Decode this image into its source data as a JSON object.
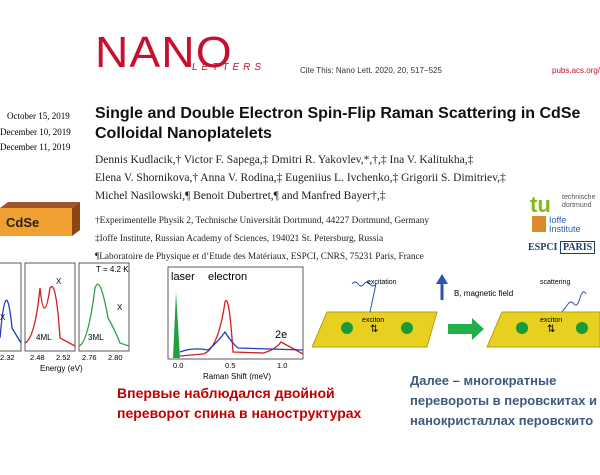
{
  "header": {
    "logo_main": "NANO",
    "logo_sub": "LETTERS",
    "cite": "Cite This: Nano Lett. 2020, 20, 517−525",
    "url": "pubs.acs.org/"
  },
  "dates": [
    "October 15, 2019",
    "December 10, 2019",
    "December 11, 2019"
  ],
  "paper": {
    "title_lines": [
      "Single and Double Electron Spin-Flip Raman Scattering in CdSe",
      "Colloidal Nanoplatelets"
    ],
    "authors": [
      "Dennis Kudlacik,† Victor F. Sapega,‡ Dmitri R. Yakovlev,*,†,‡ Ina V. Kalitukha,‡",
      "Elena V. Shornikova,† Anna V. Rodina,‡ Eugeniius L. Ivchenko,‡ Grigorii S. Dimitriev,‡",
      "Michel Nasilowski,¶ Benoit Dubertret,¶ and Manfred Bayer†,‡"
    ],
    "affiliations": [
      "†Experimentelle Physik 2, Technische Universität Dortmund, 44227 Dortmund, Germany",
      "‡Ioffe Institute, Russian Academy of Sciences, 194021 St. Petersburg, Russia",
      "¶Laboratoire de Physique et d’Etude des Matériaux, ESPCI, CNRS, 75231 Paris, France"
    ]
  },
  "logos": {
    "tu": [
      "technische",
      "dortmund"
    ],
    "ioffe": [
      "Ioffe",
      "Institute"
    ],
    "espci": [
      "ESPCI",
      "PARIS"
    ]
  },
  "sample_label": "CdSe",
  "spectra": {
    "temperature": "T = 4.2 K",
    "peak_labels": [
      "X",
      "X",
      "X"
    ],
    "layers": [
      "4ML",
      "3ML"
    ],
    "ticks": [
      "2.32",
      "2.48",
      "2.52",
      "2.76",
      "2.80"
    ],
    "xlabel": "Energy (eV)"
  },
  "raman": {
    "labels": [
      "laser",
      "electron",
      "2e"
    ],
    "ticks": [
      "0.0",
      "0.5",
      "1.0"
    ],
    "xlabel": "Raman Shift (meV)"
  },
  "red_note": [
    "Впервые наблюдался двойной",
    "переворот спина в наноструктурах"
  ],
  "diagram": {
    "excitation": "excitation",
    "exciton_left": "exciton",
    "field": "B, magnetic field",
    "scattering": "scattering",
    "exciton_right": "exciton"
  },
  "blue_note": [
    "Далее – многократные",
    "перевороты в перовскитах и",
    "нанокристаллах перовскито"
  ]
}
